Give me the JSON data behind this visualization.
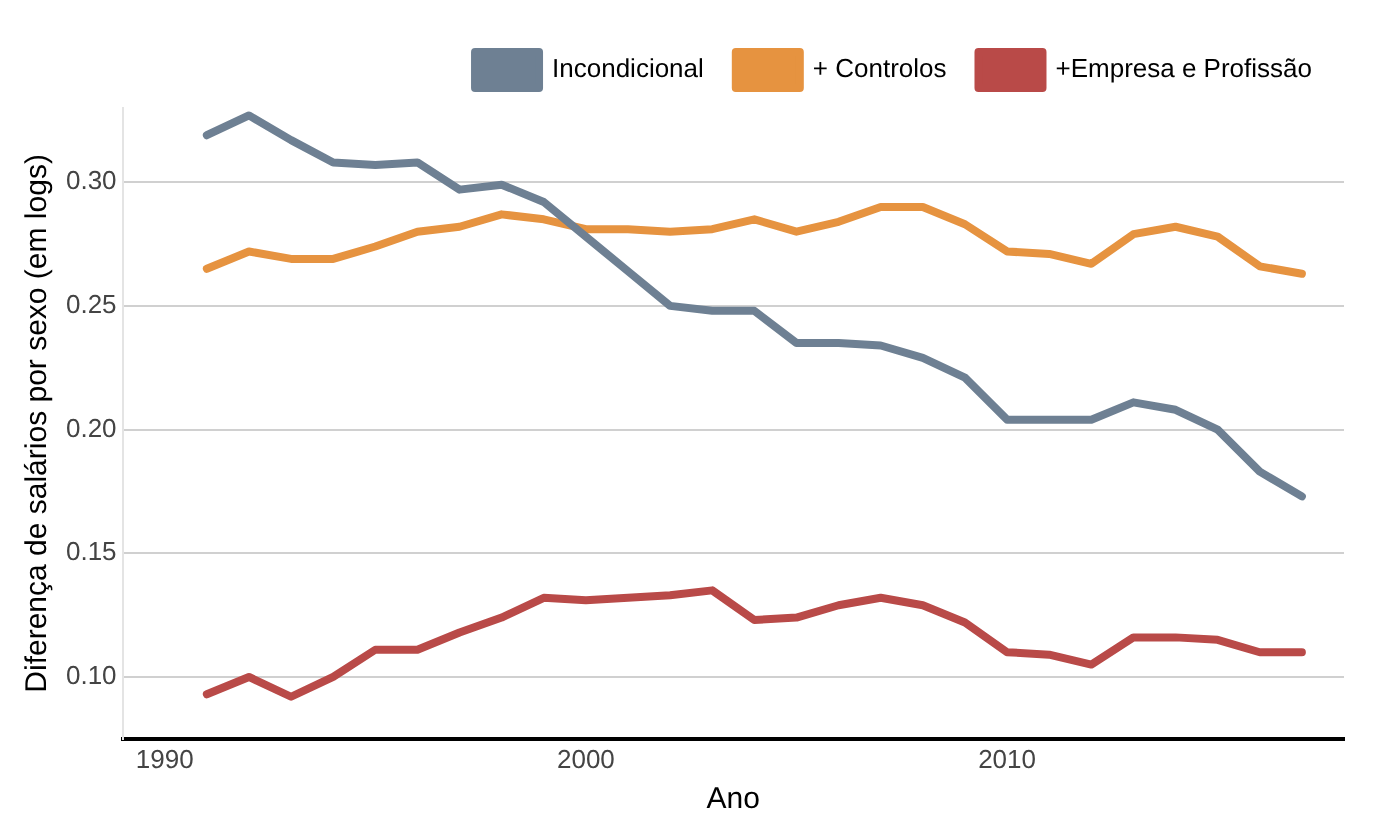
{
  "chart_data": {
    "type": "line",
    "xlabel": "Ano",
    "ylabel": "Diferença de salários por sexo (em logs)",
    "x": [
      1991,
      1992,
      1993,
      1994,
      1995,
      1996,
      1997,
      1998,
      1999,
      2000,
      2001,
      2002,
      2003,
      2004,
      2005,
      2006,
      2007,
      2008,
      2009,
      2010,
      2011,
      2012,
      2013,
      2014,
      2015,
      2016,
      2017
    ],
    "series": [
      {
        "name": "Incondicional",
        "color": "#6e8093",
        "values": [
          0.319,
          0.327,
          0.317,
          0.308,
          0.307,
          0.308,
          0.297,
          0.299,
          0.292,
          0.278,
          0.264,
          0.25,
          0.248,
          0.248,
          0.235,
          0.235,
          0.234,
          0.229,
          0.221,
          0.204,
          0.204,
          0.204,
          0.211,
          0.208,
          0.2,
          0.183,
          0.173
        ]
      },
      {
        "name": "+ Controlos",
        "color": "#e69340",
        "values": [
          0.265,
          0.272,
          0.269,
          0.269,
          0.274,
          0.28,
          0.282,
          0.287,
          0.285,
          0.281,
          0.281,
          0.28,
          0.281,
          0.285,
          0.28,
          0.284,
          0.29,
          0.29,
          0.283,
          0.272,
          0.271,
          0.267,
          0.279,
          0.282,
          0.278,
          0.266,
          0.263
        ]
      },
      {
        "name": "+Empresa e Profissão",
        "color": "#b94a48",
        "values": [
          0.093,
          0.1,
          0.092,
          0.1,
          0.111,
          0.111,
          0.118,
          0.124,
          0.132,
          0.131,
          0.132,
          0.133,
          0.135,
          0.123,
          0.124,
          0.129,
          0.132,
          0.129,
          0.122,
          0.11,
          0.109,
          0.105,
          0.116,
          0.116,
          0.115,
          0.11,
          0.11
        ]
      }
    ],
    "xlim": [
      1989,
      2018
    ],
    "xticks": [
      1990,
      2000,
      2010
    ],
    "ylim": [
      0.075,
      0.33
    ],
    "yticks": [
      {
        "value": 0.1,
        "label": "0.10"
      },
      0.15,
      {
        "value": 0.2,
        "label": "0.20"
      },
      0.25,
      {
        "value": 0.3,
        "label": "0.30"
      }
    ],
    "grid": "y",
    "legend": "top right",
    "marker": "none",
    "line_style": "solid"
  }
}
